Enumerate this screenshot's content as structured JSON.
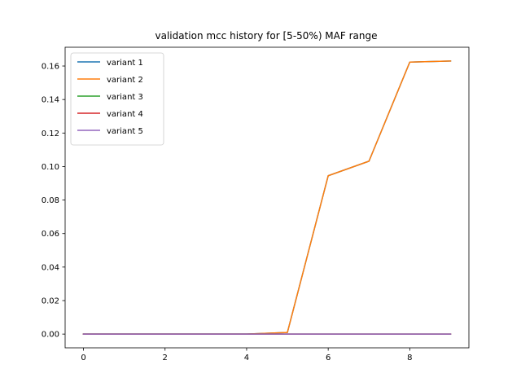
{
  "chart_data": {
    "type": "line",
    "title": "validation mcc history for [5-50%) MAF range",
    "xlabel": "",
    "ylabel": "",
    "xlim": [
      -0.45,
      9.45
    ],
    "ylim": [
      -0.0082,
      0.1712
    ],
    "x_ticks": [
      0,
      2,
      4,
      6,
      8
    ],
    "y_ticks": [
      0.0,
      0.02,
      0.04,
      0.06,
      0.08,
      0.1,
      0.12,
      0.14,
      0.16
    ],
    "grid": false,
    "legend_position": "top-left",
    "x": [
      0,
      1,
      2,
      3,
      4,
      5,
      6,
      7,
      8,
      9
    ],
    "series": [
      {
        "name": "variant 1",
        "color": "#1f77b4",
        "values": [
          0,
          0,
          0,
          0,
          0,
          0.001,
          0.0945,
          0.1032,
          0.1623,
          0.163
        ]
      },
      {
        "name": "variant 2",
        "color": "#ff7f0e",
        "values": [
          0,
          0,
          0,
          0,
          0,
          0.001,
          0.0945,
          0.1032,
          0.1623,
          0.163
        ]
      },
      {
        "name": "variant 3",
        "color": "#2ca02c",
        "values": [
          0,
          0,
          0,
          0,
          0,
          0,
          0,
          0,
          0,
          0
        ]
      },
      {
        "name": "variant 4",
        "color": "#d62728",
        "values": [
          0,
          0,
          0,
          0,
          0,
          0,
          0,
          0,
          0,
          0
        ]
      },
      {
        "name": "variant 5",
        "color": "#9467bd",
        "values": [
          0,
          0,
          0,
          0,
          0,
          0,
          0,
          0,
          0,
          0
        ]
      }
    ]
  }
}
